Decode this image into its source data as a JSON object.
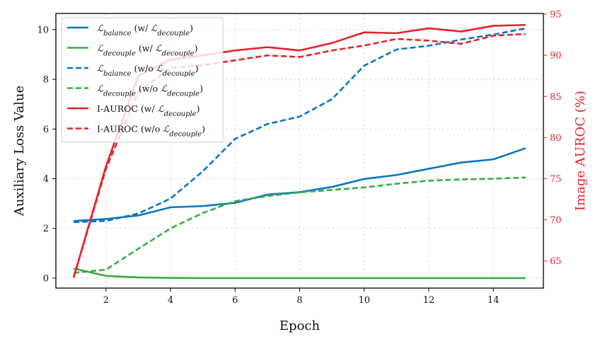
{
  "chart_data": {
    "type": "line",
    "xlabel": "Epoch",
    "ylabel_left": "Auxiliary Loss Value",
    "ylabel_right": "Image AUROC (%)",
    "xlim": [
      0.45,
      15.55
    ],
    "ylim_left": [
      -0.4,
      10.65
    ],
    "ylim_right": [
      61.7,
      95.1
    ],
    "x_ticks": [
      2,
      4,
      6,
      8,
      10,
      12,
      14
    ],
    "y_ticks_left": [
      0,
      2,
      4,
      6,
      8,
      10
    ],
    "y_ticks_right": [
      65,
      70,
      75,
      80,
      85,
      90,
      95
    ],
    "grid": true,
    "legend_position": "top-left",
    "colors": {
      "blue": "#0a77bd",
      "green": "#3aac45",
      "red": "#e4232c",
      "right_axis": "#e4232c"
    },
    "x": [
      1,
      2,
      3,
      4,
      5,
      6,
      7,
      8,
      9,
      10,
      11,
      12,
      13,
      14,
      15
    ],
    "series": [
      {
        "name": "L_balance (w/ L_decouple)",
        "symbol": "ℒ",
        "sub": "balance",
        "suffix_pre": " (w/ ",
        "suffix_symbol": "ℒ",
        "suffix_sub": "decouple",
        "suffix_post": ")",
        "color": "#0a77bd",
        "dash": "solid",
        "axis": "left",
        "values": [
          2.3,
          2.38,
          2.52,
          2.85,
          2.9,
          3.03,
          3.36,
          3.46,
          3.67,
          3.99,
          4.15,
          4.4,
          4.65,
          4.78,
          5.23
        ]
      },
      {
        "name": "L_decouple (w/ L_decouple)",
        "symbol": "ℒ",
        "sub": "decouple",
        "suffix_pre": " (w/ ",
        "suffix_symbol": "ℒ",
        "suffix_sub": "decouple",
        "suffix_post": ")",
        "color": "#3aac45",
        "dash": "solid",
        "axis": "left",
        "values": [
          0.39,
          0.09,
          0.03,
          0.01,
          0.0,
          0.0,
          0.0,
          0.0,
          0.0,
          0.0,
          0.0,
          0.0,
          0.0,
          0.0,
          0.0
        ]
      },
      {
        "name": "L_balance (w/o L_decouple)",
        "symbol": "ℒ",
        "sub": "balance",
        "suffix_pre": " (w/o ",
        "suffix_symbol": "ℒ",
        "suffix_sub": "decouple",
        "suffix_post": ")",
        "color": "#0a77bd",
        "dash": "dashed",
        "axis": "left",
        "values": [
          2.25,
          2.3,
          2.6,
          3.2,
          4.3,
          5.6,
          6.2,
          6.5,
          7.2,
          8.55,
          9.2,
          9.35,
          9.6,
          9.8,
          10.05
        ]
      },
      {
        "name": "L_decouple (w/o L_decouple)",
        "symbol": "ℒ",
        "sub": "decouple",
        "suffix_pre": " (w/o ",
        "suffix_symbol": "ℒ",
        "suffix_sub": "decouple",
        "suffix_post": ")",
        "color": "#3aac45",
        "dash": "dashed",
        "axis": "left",
        "values": [
          0.21,
          0.34,
          1.18,
          2.0,
          2.62,
          3.1,
          3.3,
          3.45,
          3.55,
          3.65,
          3.8,
          3.92,
          3.97,
          4.0,
          4.05
        ]
      },
      {
        "name": "I-AUROC (w/ L_decouple)",
        "symbol": "",
        "sub": "",
        "prefix": "I-AUROC",
        "suffix_pre": " (w/ ",
        "suffix_symbol": "ℒ",
        "suffix_sub": "decouple",
        "suffix_post": ")",
        "color": "#e4232c",
        "dash": "solid",
        "axis": "right",
        "values": [
          63.0,
          76.5,
          87.5,
          89.5,
          90.0,
          90.6,
          91.0,
          90.6,
          91.5,
          92.8,
          92.7,
          93.3,
          92.9,
          93.6,
          93.7
        ]
      },
      {
        "name": "I-AUROC (w/o L_decouple)",
        "symbol": "",
        "sub": "",
        "prefix": "I-AUROC",
        "suffix_pre": " (w/o ",
        "suffix_symbol": "ℒ",
        "suffix_sub": "decouple",
        "suffix_post": ")",
        "color": "#e4232c",
        "dash": "dashed",
        "axis": "right",
        "values": [
          63.0,
          76.2,
          85.5,
          88.5,
          88.8,
          89.4,
          90.0,
          89.8,
          90.6,
          91.2,
          92.0,
          91.8,
          91.4,
          92.4,
          92.6
        ]
      }
    ]
  }
}
